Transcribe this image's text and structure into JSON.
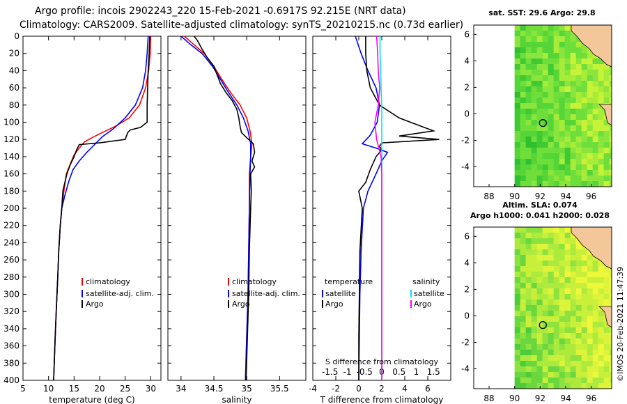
{
  "header": {
    "line1": "Argo profile: incois 2902243_220 15-Feb-2021 -0.6917S 92.215E (NRT data)",
    "line2": "Climatology: CARS2009. Satellite-adjusted climatology: synTS_20210215.nc (0.73d earlier)"
  },
  "colors": {
    "climatology": "#ff0000",
    "satellite": "#0000ff",
    "argo": "#000000",
    "s_satellite": "#00e5ee",
    "s_argo": "#ff00ff"
  },
  "chart_data": [
    {
      "id": "temperature",
      "type": "line",
      "xlabel": "temperature (deg C)",
      "ylabel": "depth",
      "xlim": [
        5,
        32
      ],
      "ylim": [
        0,
        400
      ],
      "xticks": [
        "5",
        "10",
        "15",
        "20",
        "25",
        "30"
      ],
      "xtick_values": [
        5,
        10,
        15,
        20,
        25,
        30
      ],
      "yticks": [
        "0",
        "20",
        "40",
        "60",
        "80",
        "100",
        "120",
        "140",
        "160",
        "180",
        "200",
        "220",
        "240",
        "260",
        "280",
        "300",
        "320",
        "340",
        "360",
        "380",
        "400"
      ],
      "legend": [
        "climatology",
        "satellite-adj. clim.",
        "Argo"
      ],
      "series": [
        {
          "name": "climatology",
          "color": "#ff0000",
          "points": [
            [
              30.0,
              0
            ],
            [
              29.9,
              20
            ],
            [
              29.6,
              40
            ],
            [
              29.0,
              60
            ],
            [
              27.8,
              80
            ],
            [
              25.8,
              95
            ],
            [
              23.0,
              105
            ],
            [
              20.5,
              112
            ],
            [
              18.5,
              118
            ],
            [
              17.0,
              123
            ],
            [
              16.0,
              130
            ],
            [
              15.0,
              138
            ],
            [
              14.3,
              148
            ],
            [
              13.5,
              160
            ],
            [
              13.0,
              180
            ],
            [
              12.6,
              200
            ],
            [
              12.3,
              220
            ],
            [
              12.0,
              250
            ],
            [
              11.8,
              280
            ],
            [
              11.5,
              320
            ],
            [
              11.3,
              350
            ],
            [
              11.0,
              400
            ]
          ]
        },
        {
          "name": "satellite-adj. clim.",
          "color": "#0000ff",
          "points": [
            [
              29.5,
              0
            ],
            [
              29.3,
              20
            ],
            [
              29.0,
              40
            ],
            [
              28.4,
              60
            ],
            [
              27.0,
              80
            ],
            [
              25.0,
              95
            ],
            [
              22.6,
              108
            ],
            [
              20.5,
              117
            ],
            [
              19.0,
              126
            ],
            [
              17.5,
              135
            ],
            [
              16.0,
              145
            ],
            [
              14.8,
              155
            ],
            [
              14.0,
              168
            ],
            [
              13.2,
              185
            ],
            [
              12.6,
              200
            ],
            [
              12.3,
              220
            ],
            [
              12.0,
              250
            ],
            [
              11.8,
              280
            ],
            [
              11.5,
              320
            ],
            [
              11.3,
              350
            ],
            [
              11.0,
              400
            ]
          ]
        },
        {
          "name": "Argo",
          "color": "#000000",
          "points": [
            [
              29.8,
              0
            ],
            [
              29.7,
              20
            ],
            [
              29.5,
              40
            ],
            [
              29.4,
              60
            ],
            [
              29.3,
              80
            ],
            [
              29.3,
              100
            ],
            [
              28.0,
              106
            ],
            [
              26.0,
              109
            ],
            [
              25.5,
              112
            ],
            [
              25.0,
              120
            ],
            [
              20.0,
              124
            ],
            [
              16.0,
              126
            ],
            [
              15.5,
              132
            ],
            [
              15.0,
              140
            ],
            [
              14.2,
              150
            ],
            [
              13.6,
              160
            ],
            [
              13.2,
              170
            ],
            [
              12.8,
              180
            ],
            [
              12.6,
              200
            ],
            [
              12.3,
              220
            ],
            [
              12.0,
              250
            ],
            [
              11.8,
              280
            ],
            [
              11.5,
              320
            ],
            [
              11.3,
              350
            ],
            [
              11.0,
              400
            ]
          ]
        }
      ]
    },
    {
      "id": "salinity",
      "type": "line",
      "xlabel": "salinity",
      "ylabel": "depth",
      "xlim": [
        33.8,
        35.9
      ],
      "ylim": [
        0,
        400
      ],
      "xticks": [
        "34",
        "34.5",
        "35",
        "35.5"
      ],
      "xtick_values": [
        34,
        34.5,
        35,
        35.5
      ],
      "legend": [
        "climatology",
        "satellite-adj. clim.",
        "Argo"
      ],
      "series": [
        {
          "name": "climatology",
          "color": "#ff0000",
          "points": [
            [
              34.05,
              0
            ],
            [
              34.2,
              10
            ],
            [
              34.35,
              20
            ],
            [
              34.5,
              35
            ],
            [
              34.62,
              50
            ],
            [
              34.75,
              65
            ],
            [
              34.9,
              80
            ],
            [
              35.0,
              95
            ],
            [
              35.05,
              110
            ],
            [
              35.08,
              125
            ],
            [
              35.06,
              140
            ],
            [
              35.04,
              160
            ],
            [
              35.04,
              200
            ],
            [
              35.03,
              250
            ],
            [
              35.02,
              300
            ],
            [
              35.0,
              350
            ],
            [
              34.98,
              400
            ]
          ]
        },
        {
          "name": "satellite-adj. clim.",
          "color": "#0000ff",
          "points": [
            [
              34.0,
              0
            ],
            [
              34.15,
              10
            ],
            [
              34.32,
              20
            ],
            [
              34.48,
              35
            ],
            [
              34.6,
              50
            ],
            [
              34.72,
              65
            ],
            [
              34.85,
              80
            ],
            [
              34.95,
              95
            ],
            [
              35.02,
              110
            ],
            [
              35.06,
              125
            ],
            [
              35.06,
              140
            ],
            [
              35.05,
              160
            ],
            [
              35.04,
              200
            ],
            [
              35.03,
              250
            ],
            [
              35.02,
              300
            ],
            [
              35.0,
              350
            ],
            [
              34.98,
              400
            ]
          ]
        },
        {
          "name": "Argo",
          "color": "#000000",
          "points": [
            [
              34.2,
              0
            ],
            [
              34.25,
              5
            ],
            [
              34.32,
              15
            ],
            [
              34.4,
              25
            ],
            [
              34.5,
              35
            ],
            [
              34.55,
              45
            ],
            [
              34.6,
              55
            ],
            [
              34.68,
              65
            ],
            [
              34.78,
              75
            ],
            [
              34.85,
              85
            ],
            [
              34.88,
              95
            ],
            [
              34.9,
              105
            ],
            [
              34.92,
              112
            ],
            [
              35.0,
              118
            ],
            [
              35.1,
              125
            ],
            [
              35.12,
              135
            ],
            [
              35.08,
              145
            ],
            [
              35.12,
              152
            ],
            [
              35.06,
              160
            ],
            [
              35.07,
              180
            ],
            [
              35.06,
              200
            ],
            [
              35.04,
              250
            ],
            [
              35.03,
              300
            ],
            [
              35.01,
              350
            ],
            [
              34.99,
              400
            ]
          ]
        }
      ]
    },
    {
      "id": "difference",
      "type": "line",
      "xlabel": "T difference from climatology",
      "x2label": "S difference from climatology",
      "ylabel": "depth",
      "xlim": [
        -4,
        8
      ],
      "ylim": [
        0,
        400
      ],
      "xticks": [
        "-4",
        "-2",
        "0",
        "2",
        "4",
        "6"
      ],
      "xtick_values": [
        -4,
        -2,
        0,
        2,
        4,
        6
      ],
      "x2ticks": [
        "-1.5",
        "-1",
        "-0.5",
        "0",
        "0.5",
        "1",
        "1.5"
      ],
      "x2tick_values": [
        -1.5,
        -1,
        -0.5,
        0,
        0.5,
        1,
        1.5
      ],
      "x2lim": [
        -2,
        2
      ],
      "legend_temperature_title": "temperature",
      "legend_salinity_title": "salinity",
      "legend_temperature": [
        "satellite",
        "Argo"
      ],
      "legend_salinity": [
        "satellite",
        "Argo"
      ],
      "series": [
        {
          "name": "T satellite",
          "color": "#0000ff",
          "axis": "T",
          "points": [
            [
              -0.3,
              0
            ],
            [
              0.2,
              20
            ],
            [
              0.8,
              40
            ],
            [
              1.5,
              60
            ],
            [
              1.8,
              80
            ],
            [
              1.6,
              100
            ],
            [
              1.0,
              115
            ],
            [
              0.3,
              125
            ],
            [
              1.5,
              130
            ],
            [
              2.5,
              135
            ],
            [
              2.0,
              145
            ],
            [
              1.5,
              160
            ],
            [
              0.8,
              180
            ],
            [
              0.4,
              200
            ],
            [
              0.2,
              250
            ],
            [
              0.1,
              300
            ],
            [
              0.05,
              350
            ],
            [
              0.0,
              400
            ]
          ]
        },
        {
          "name": "T Argo",
          "color": "#000000",
          "axis": "T",
          "points": [
            [
              0.6,
              0
            ],
            [
              0.6,
              20
            ],
            [
              0.7,
              40
            ],
            [
              1.0,
              60
            ],
            [
              1.8,
              80
            ],
            [
              3.5,
              95
            ],
            [
              5.5,
              105
            ],
            [
              6.5,
              110
            ],
            [
              3.5,
              116
            ],
            [
              7.0,
              120
            ],
            [
              2.0,
              124
            ],
            [
              1.8,
              128
            ],
            [
              2.0,
              132
            ],
            [
              1.5,
              140
            ],
            [
              1.0,
              155
            ],
            [
              0.6,
              170
            ],
            [
              0.0,
              180
            ],
            [
              0.3,
              200
            ],
            [
              0.1,
              250
            ],
            [
              0.05,
              300
            ],
            [
              0.0,
              350
            ],
            [
              0.0,
              400
            ]
          ]
        },
        {
          "name": "S satellite",
          "color": "#00e5ee",
          "axis": "S",
          "points": [
            [
              -0.05,
              0
            ],
            [
              -0.05,
              20
            ],
            [
              -0.03,
              40
            ],
            [
              -0.02,
              60
            ],
            [
              0.0,
              80
            ],
            [
              0.0,
              100
            ],
            [
              0.0,
              130
            ],
            [
              0.0,
              160
            ],
            [
              0.0,
              400
            ]
          ]
        },
        {
          "name": "S Argo",
          "color": "#ff00ff",
          "axis": "S",
          "points": [
            [
              -0.15,
              0
            ],
            [
              -0.12,
              20
            ],
            [
              -0.1,
              40
            ],
            [
              -0.06,
              60
            ],
            [
              -0.1,
              80
            ],
            [
              -0.2,
              100
            ],
            [
              -0.15,
              120
            ],
            [
              -0.02,
              140
            ],
            [
              0.0,
              160
            ],
            [
              0.0,
              200
            ],
            [
              0.0,
              400
            ]
          ]
        }
      ]
    }
  ],
  "maps": {
    "sst": {
      "title": "sat. SST: 29.6 Argo: 29.8",
      "xticks": [
        "88",
        "90",
        "92",
        "94",
        "96"
      ],
      "xtick_values": [
        88,
        90,
        92,
        94,
        96
      ],
      "yticks": [
        "6",
        "4",
        "2",
        "0",
        "-2",
        "-4"
      ],
      "ytick_values": [
        6,
        4,
        2,
        0,
        -2,
        -4
      ],
      "xlim": [
        86.8,
        97.6
      ],
      "ylim": [
        -5.5,
        6.7
      ],
      "argo_position": [
        92.215,
        -0.6917
      ]
    },
    "sla": {
      "title_line1": "Altim. SLA: 0.074",
      "title_line2": "Argo h1000: 0.041 h2000: 0.028",
      "xticks": [
        "88",
        "90",
        "92",
        "94",
        "96"
      ],
      "xtick_values": [
        88,
        90,
        92,
        94,
        96
      ],
      "yticks": [
        "6",
        "4",
        "2",
        "0",
        "-2",
        "-4"
      ],
      "ytick_values": [
        6,
        4,
        2,
        0,
        -2,
        -4
      ],
      "xlim": [
        86.8,
        97.6
      ],
      "ylim": [
        -5.5,
        6.7
      ],
      "argo_position": [
        92.215,
        -0.6917
      ]
    }
  },
  "footer": {
    "timestamp": "©IMOS 20-Feb-2021 11:47:39"
  }
}
